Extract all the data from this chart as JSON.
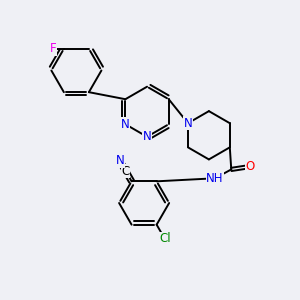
{
  "background_color": "#eff0f5",
  "bond_color": "#000000",
  "N_color": "#0000ee",
  "O_color": "#ff0000",
  "F_color": "#ee00ee",
  "Cl_color": "#008800",
  "line_width": 1.4,
  "dbo": 0.055,
  "font_size": 8.5,
  "fig_w": 3.0,
  "fig_h": 3.0,
  "dpi": 100,
  "xlim": [
    0,
    10
  ],
  "ylim": [
    0,
    10
  ]
}
